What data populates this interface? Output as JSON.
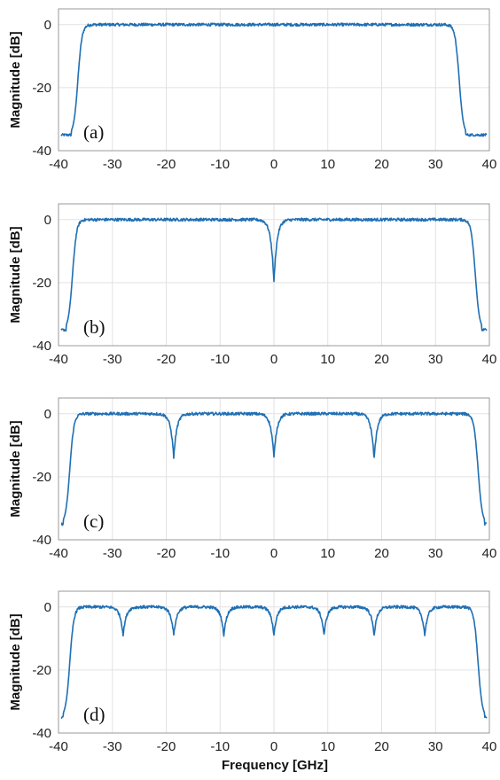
{
  "colors": {
    "trace": "#1f6fb4",
    "grid": "#e2e2e2",
    "axis": "#999999",
    "text": "#222222"
  },
  "xlabel": "Frequency [GHz]",
  "chart_data": [
    {
      "type": "line",
      "panel_label": "(a)",
      "ylabel": "Magnitude [dB]",
      "xlim": [
        -40,
        40
      ],
      "ylim": [
        -40,
        5
      ],
      "xticks": [
        -40,
        -30,
        -20,
        -10,
        0,
        10,
        20,
        30,
        40
      ],
      "xtick_labels": [
        "-40",
        "-30",
        "-20",
        "-10",
        "0",
        "10",
        "20",
        "30",
        "40"
      ],
      "yticks": [
        0,
        -20,
        -40
      ],
      "ytick_labels": [
        "0",
        "-20",
        "-40"
      ],
      "grid": true,
      "passband_edges_ghz": [
        -36,
        34
      ],
      "stopband_level_db": -35,
      "passband_level_db": 0,
      "notch_centers_ghz": [],
      "notch_depths_db": []
    },
    {
      "type": "line",
      "panel_label": "(b)",
      "ylabel": "Magnitude [dB]",
      "xlim": [
        -40,
        40
      ],
      "ylim": [
        -40,
        5
      ],
      "xticks": [
        -40,
        -30,
        -20,
        -10,
        0,
        10,
        20,
        30,
        40
      ],
      "xtick_labels": [
        "-40",
        "-30",
        "-20",
        "-10",
        "0",
        "10",
        "20",
        "30",
        "40"
      ],
      "yticks": [
        0,
        -20,
        -40
      ],
      "ytick_labels": [
        "0",
        "-20",
        "-40"
      ],
      "grid": true,
      "passband_edges_ghz": [
        -37,
        37
      ],
      "stopband_level_db": -35,
      "passband_level_db": 0,
      "notch_centers_ghz": [
        0
      ],
      "notch_depths_db": [
        -20
      ]
    },
    {
      "type": "line",
      "panel_label": "(c)",
      "ylabel": "Magnitude [dB]",
      "xlim": [
        -40,
        40
      ],
      "ylim": [
        -40,
        5
      ],
      "xticks": [
        -40,
        -30,
        -20,
        -10,
        0,
        10,
        20,
        30,
        40
      ],
      "xtick_labels": [
        "-40",
        "-30",
        "-20",
        "-10",
        "0",
        "10",
        "20",
        "30",
        "40"
      ],
      "yticks": [
        0,
        -20,
        -40
      ],
      "ytick_labels": [
        "0",
        "-20",
        "-40"
      ],
      "grid": true,
      "passband_edges_ghz": [
        -37.5,
        37.5
      ],
      "stopband_level_db": -35,
      "passband_level_db": 0,
      "notch_centers_ghz": [
        -18.6,
        0,
        18.6
      ],
      "notch_depths_db": [
        -14,
        -14,
        -14.5
      ]
    },
    {
      "type": "line",
      "panel_label": "(d)",
      "ylabel": "Magnitude [dB]",
      "xlim": [
        -40,
        40
      ],
      "ylim": [
        -40,
        5
      ],
      "xticks": [
        -40,
        -30,
        -20,
        -10,
        0,
        10,
        20,
        30,
        40
      ],
      "xtick_labels": [
        "-40",
        "-30",
        "-20",
        "-10",
        "0",
        "10",
        "20",
        "30",
        "40"
      ],
      "yticks": [
        0,
        -20,
        -40
      ],
      "ytick_labels": [
        "0",
        "-20",
        "-40"
      ],
      "grid": true,
      "passband_edges_ghz": [
        -37.5,
        37.5
      ],
      "stopband_level_db": -35,
      "passband_level_db": 0,
      "notch_centers_ghz": [
        -28,
        -18.6,
        -9.3,
        0,
        9.3,
        18.6,
        28
      ],
      "notch_depths_db": [
        -9,
        -9,
        -9,
        -9,
        -9,
        -9,
        -9
      ]
    }
  ]
}
